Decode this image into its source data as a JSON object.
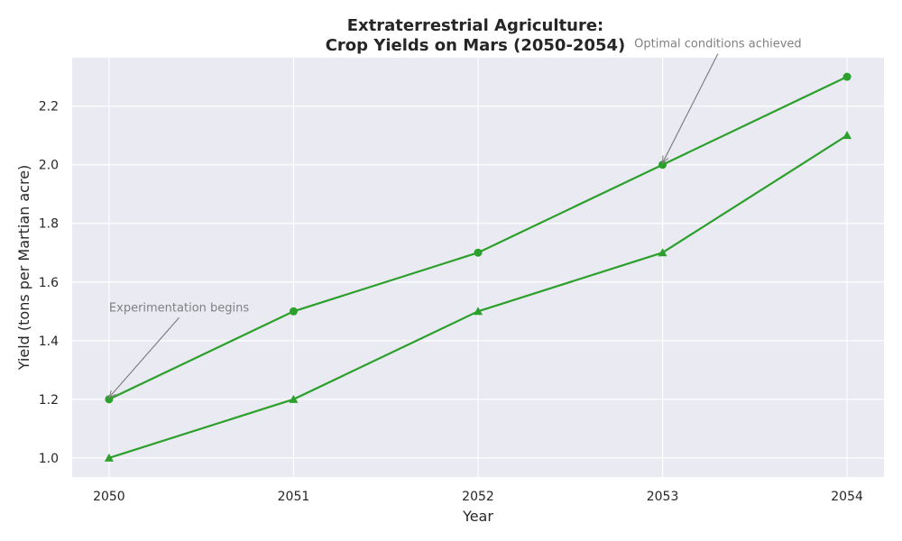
{
  "chart_data": {
    "type": "line",
    "title": "Extraterrestrial Agriculture:\nCrop Yields on Mars (2050-2054)",
    "xlabel": "Year",
    "ylabel": "Yield (tons per Martian acre)",
    "x": [
      2050,
      2051,
      2052,
      2053,
      2054
    ],
    "x_ticks": [
      "2050",
      "2051",
      "2052",
      "2053",
      "2054"
    ],
    "y_ticks": [
      "1.0",
      "1.2",
      "1.4",
      "1.6",
      "1.8",
      "2.0",
      "2.2"
    ],
    "xlim": [
      2049.8,
      2054.2
    ],
    "ylim": [
      0.935,
      2.365
    ],
    "grid": true,
    "legend": "none",
    "series": [
      {
        "marker": "circle",
        "color": "#2ca02c",
        "values": [
          1.2,
          1.5,
          1.7,
          2.0,
          2.3
        ]
      },
      {
        "marker": "triangle",
        "color": "#2ca02c",
        "values": [
          1.0,
          1.2,
          1.5,
          1.7,
          2.1
        ]
      }
    ],
    "annotations": [
      {
        "text": "Experimentation begins",
        "x": 2050,
        "y": 1.2,
        "text_x": 2050,
        "text_y": 1.5
      },
      {
        "text": "Optimal conditions achieved",
        "x": 2053,
        "y": 2.0,
        "text_x": 2053.3,
        "text_y": 2.4
      }
    ],
    "colors": {
      "background": "#eaeaf2",
      "grid": "#ffffff",
      "annotation": "#808080"
    }
  }
}
